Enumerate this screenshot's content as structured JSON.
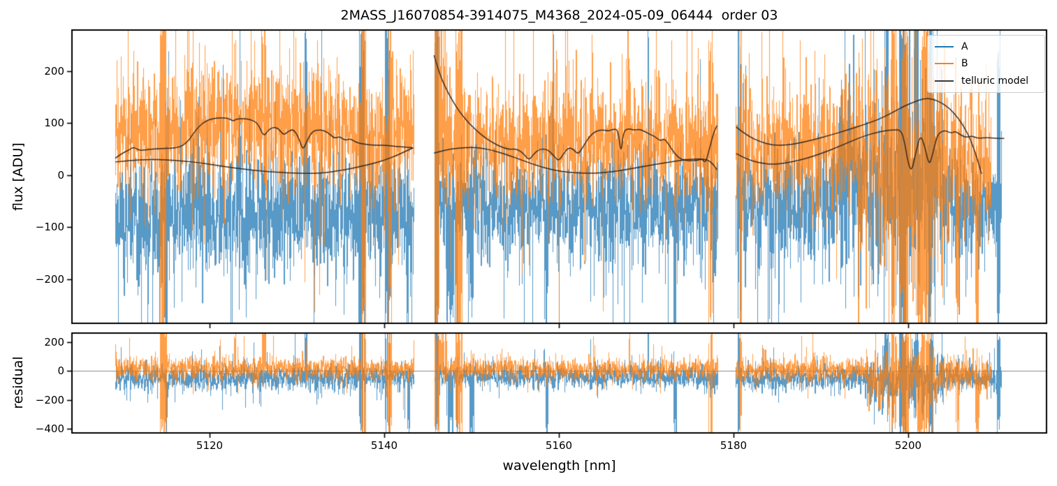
{
  "chart_data": {
    "type": "line",
    "title": "2MASS_J16070854-3914075_M4368_2024-05-09_06444  order 03",
    "xlabel": "wavelength [nm]",
    "xlim": [
      5104.2,
      5215.8
    ],
    "xticks": {
      "values": [
        5120,
        5140,
        5160,
        5180,
        5200
      ],
      "labels": [
        "5120",
        "5140",
        "5160",
        "5180",
        "5200"
      ]
    },
    "grid": false,
    "legend_position": "upper right",
    "legend": [
      {
        "label": "A",
        "color": "#1f77b4"
      },
      {
        "label": "B",
        "color": "#ff7f0e"
      },
      {
        "label": "telluric model",
        "color": "#3a3a3a"
      }
    ],
    "panels": [
      {
        "name": "flux",
        "ylabel": "flux [ADU]",
        "ylim": [
          -285,
          279
        ],
        "yticks": {
          "values": [
            -200,
            -100,
            0,
            100,
            200
          ],
          "labels": [
            "−200",
            "−100",
            "0",
            "100",
            "200"
          ]
        }
      },
      {
        "name": "residual",
        "ylabel": "residual",
        "ylim": [
          -429,
          260
        ],
        "yticks": {
          "values": [
            -400,
            -200,
            0,
            200
          ],
          "labels": [
            "−400",
            "−200",
            "0",
            "200"
          ]
        },
        "zero_line_color": "#8a8a8a"
      }
    ],
    "series_style": {
      "A": {
        "color": "#1f77b4",
        "alpha": 0.75
      },
      "B": {
        "color": "#ff7f0e",
        "alpha": 0.75
      },
      "telluric": {
        "color": "#262220",
        "alpha": 0.92
      }
    },
    "noise_seed": 1337,
    "segments": [
      {
        "x_range": [
          5109.2,
          5143.4
        ],
        "flux": {
          "A": {
            "center": -75,
            "sigma": 60
          },
          "B": {
            "center": 78,
            "sigma": 60
          }
        },
        "residual": {
          "A": {
            "center": -52,
            "sigma": 44
          },
          "B": {
            "center": 16,
            "sigma": 40
          }
        }
      },
      {
        "x_range": [
          5145.7,
          5178.2
        ],
        "flux": {
          "A": {
            "center": -62,
            "sigma": 55
          },
          "B": {
            "center": 60,
            "sigma": 57
          }
        },
        "residual": {
          "A": {
            "center": -45,
            "sigma": 40
          },
          "B": {
            "center": 12,
            "sigma": 38
          }
        }
      },
      {
        "x_range": [
          5180.2,
          5211.0
        ],
        "x_end": {
          "A": 5210.7,
          "B": 5209.5
        },
        "flux": {
          "A": {
            "center": -58,
            "sigma": 60
          },
          "B": {
            "center": 55,
            "sigma": 62
          }
        },
        "residual": {
          "A": {
            "center": -50,
            "sigma": 45
          },
          "B": {
            "center": 10,
            "sigma": 44
          }
        }
      }
    ],
    "boosts": [
      {
        "panel": "flux",
        "series": "B",
        "x0": 5117,
        "x1": 5133,
        "sigma_mult": 1.0,
        "center_shift": 15
      },
      {
        "panel": "flux",
        "series": "A",
        "x0": 5192,
        "x1": 5204,
        "sigma_mult": 1.7,
        "center_shift": 45
      },
      {
        "panel": "flux",
        "series": "B",
        "x0": 5194,
        "x1": 5204.5,
        "sigma_mult": 1.7,
        "center_shift": -35
      },
      {
        "panel": "flux",
        "series": "B",
        "x0": 5204.5,
        "x1": 5210,
        "sigma_mult": 1.25,
        "center_shift": -25
      },
      {
        "panel": "residual",
        "series": "A",
        "x0": 5195,
        "x1": 5204,
        "sigma_mult": 2.1,
        "center_shift": -35
      },
      {
        "panel": "residual",
        "series": "B",
        "x0": 5195,
        "x1": 5204,
        "sigma_mult": 2.3,
        "center_shift": -55
      },
      {
        "panel": "residual",
        "series": "B",
        "x0": 5204,
        "x1": 5209.5,
        "sigma_mult": 1.5,
        "center_shift": -35
      }
    ],
    "spikes": [
      {
        "x": 5114.7,
        "w": 0.8,
        "series": "B",
        "dir": "both"
      },
      {
        "x": 5115.0,
        "w": 0.3,
        "series": "A",
        "dir": "down"
      },
      {
        "x": 5122.9,
        "w": 0.2,
        "series": "B",
        "dir": "up"
      },
      {
        "x": 5126.2,
        "w": 0.5,
        "series": "B",
        "dir": "up"
      },
      {
        "x": 5131.0,
        "w": 0.25,
        "series": "A",
        "dir": "up"
      },
      {
        "x": 5137.4,
        "w": 0.7,
        "series": "A",
        "dir": "both"
      },
      {
        "x": 5137.6,
        "w": 0.6,
        "series": "B",
        "dir": "both"
      },
      {
        "x": 5140.3,
        "w": 0.6,
        "series": "A",
        "dir": "both"
      },
      {
        "x": 5140.6,
        "w": 0.5,
        "series": "B",
        "dir": "both"
      },
      {
        "x": 5142.8,
        "w": 0.4,
        "series": "A",
        "dir": "down"
      },
      {
        "x": 5145.9,
        "w": 0.6,
        "series": "A",
        "dir": "both"
      },
      {
        "x": 5146.0,
        "w": 0.5,
        "series": "B",
        "dir": "both"
      },
      {
        "x": 5146.7,
        "w": 0.9,
        "series": "B",
        "dir": "up"
      },
      {
        "x": 5147.7,
        "w": 1.3,
        "series": "A",
        "dir": "down"
      },
      {
        "x": 5148.5,
        "w": 0.8,
        "series": "B",
        "dir": "both"
      },
      {
        "x": 5150.0,
        "w": 0.5,
        "series": "A",
        "dir": "down"
      },
      {
        "x": 5158.6,
        "w": 0.25,
        "series": "A",
        "dir": "down"
      },
      {
        "x": 5168.0,
        "w": 0.25,
        "series": "B",
        "dir": "up"
      },
      {
        "x": 5170.2,
        "w": 0.2,
        "series": "A",
        "dir": "up"
      },
      {
        "x": 5173.3,
        "w": 0.4,
        "series": "A",
        "dir": "down"
      },
      {
        "x": 5177.3,
        "w": 0.5,
        "series": "B",
        "dir": "both"
      },
      {
        "x": 5180.6,
        "w": 0.4,
        "series": "A",
        "dir": "both"
      },
      {
        "x": 5180.8,
        "w": 0.3,
        "series": "B",
        "dir": "both"
      },
      {
        "x": 5197.5,
        "w": 0.5,
        "series": "A",
        "dir": "up"
      },
      {
        "x": 5198.3,
        "w": 0.6,
        "series": "B",
        "dir": "both"
      },
      {
        "x": 5199.3,
        "w": 0.8,
        "series": "A",
        "dir": "both"
      },
      {
        "x": 5199.6,
        "w": 0.8,
        "series": "B",
        "dir": "both"
      },
      {
        "x": 5200.9,
        "w": 0.6,
        "series": "A",
        "dir": "up"
      },
      {
        "x": 5201.2,
        "w": 0.7,
        "series": "B",
        "dir": "down"
      },
      {
        "x": 5201.9,
        "w": 0.9,
        "series": "B",
        "dir": "both"
      },
      {
        "x": 5202.6,
        "w": 0.5,
        "series": "A",
        "dir": "both"
      },
      {
        "x": 5205.6,
        "w": 0.4,
        "series": "B",
        "dir": "down"
      },
      {
        "x": 5207.9,
        "w": 0.5,
        "series": "B",
        "dir": "down"
      },
      {
        "x": 5210.3,
        "w": 0.4,
        "series": "A",
        "dir": "both"
      }
    ],
    "telluric_model": [
      [
        [
          5109.2,
          32
        ],
        [
          5110.0,
          42
        ],
        [
          5110.8,
          48
        ],
        [
          5111.3,
          54
        ],
        [
          5111.9,
          47
        ],
        [
          5112.6,
          48
        ],
        [
          5113.5,
          50
        ],
        [
          5114.5,
          51
        ],
        [
          5115.5,
          51
        ],
        [
          5116.5,
          53
        ],
        [
          5117.3,
          60
        ],
        [
          5118.0,
          76
        ],
        [
          5118.8,
          94
        ],
        [
          5119.6,
          104
        ],
        [
          5120.3,
          108
        ],
        [
          5121.2,
          110
        ],
        [
          5122.2,
          109
        ],
        [
          5122.7,
          103
        ],
        [
          5123.1,
          108
        ],
        [
          5124.2,
          108
        ],
        [
          5125.0,
          105
        ],
        [
          5125.6,
          97
        ],
        [
          5126.2,
          73
        ],
        [
          5126.7,
          86
        ],
        [
          5127.3,
          92
        ],
        [
          5127.9,
          89
        ],
        [
          5128.5,
          76
        ],
        [
          5129.0,
          84
        ],
        [
          5129.6,
          88
        ],
        [
          5130.2,
          72
        ],
        [
          5130.7,
          46
        ],
        [
          5131.2,
          68
        ],
        [
          5131.8,
          84
        ],
        [
          5132.5,
          87
        ],
        [
          5133.2,
          85
        ],
        [
          5133.8,
          78
        ],
        [
          5134.3,
          70
        ],
        [
          5134.9,
          74
        ],
        [
          5135.5,
          66
        ],
        [
          5136.1,
          70
        ],
        [
          5136.7,
          63
        ],
        [
          5137.4,
          60
        ],
        [
          5138.2,
          58
        ],
        [
          5139.2,
          57
        ],
        [
          5140.2,
          57
        ],
        [
          5141.2,
          55
        ],
        [
          5142.2,
          54
        ],
        [
          5143.3,
          52
        ]
      ],
      [
        [
          5109.2,
          25
        ],
        [
          5111,
          28
        ],
        [
          5113,
          30
        ],
        [
          5115,
          29
        ],
        [
          5117,
          27
        ],
        [
          5119,
          23
        ],
        [
          5121,
          18
        ],
        [
          5123,
          13
        ],
        [
          5125,
          9
        ],
        [
          5127,
          6
        ],
        [
          5129,
          4
        ],
        [
          5131,
          3
        ],
        [
          5132.5,
          3
        ],
        [
          5134,
          6
        ],
        [
          5135.5,
          10
        ],
        [
          5137,
          15
        ],
        [
          5138.5,
          21
        ],
        [
          5140,
          28
        ],
        [
          5141.5,
          38
        ],
        [
          5142.5,
          46
        ],
        [
          5143.3,
          52
        ]
      ],
      [
        [
          5145.7,
          230
        ],
        [
          5146.3,
          196
        ],
        [
          5147.0,
          168
        ],
        [
          5147.8,
          143
        ],
        [
          5148.6,
          122
        ],
        [
          5149.5,
          103
        ],
        [
          5150.5,
          86
        ],
        [
          5151.5,
          72
        ],
        [
          5152.5,
          61
        ],
        [
          5153.5,
          53
        ],
        [
          5154.3,
          49
        ],
        [
          5155.0,
          50
        ],
        [
          5155.6,
          46
        ],
        [
          5156.1,
          38
        ],
        [
          5156.6,
          28
        ],
        [
          5157.1,
          40
        ],
        [
          5157.7,
          49
        ],
        [
          5158.4,
          50
        ],
        [
          5159.0,
          45
        ],
        [
          5159.6,
          33
        ],
        [
          5160.0,
          27
        ],
        [
          5160.5,
          40
        ],
        [
          5161.1,
          53
        ],
        [
          5161.7,
          49
        ],
        [
          5162.2,
          39
        ],
        [
          5162.8,
          55
        ],
        [
          5163.5,
          74
        ],
        [
          5164.2,
          84
        ],
        [
          5165.0,
          87
        ],
        [
          5165.7,
          84
        ],
        [
          5166.2,
          88
        ],
        [
          5166.8,
          87
        ],
        [
          5167.1,
          38
        ],
        [
          5167.4,
          85
        ],
        [
          5168.0,
          89
        ],
        [
          5168.6,
          86
        ],
        [
          5169.2,
          88
        ],
        [
          5169.8,
          84
        ],
        [
          5170.4,
          78
        ],
        [
          5171.0,
          74
        ],
        [
          5171.6,
          65
        ],
        [
          5172.1,
          70
        ],
        [
          5172.6,
          58
        ],
        [
          5173.1,
          45
        ],
        [
          5173.7,
          33
        ],
        [
          5174.4,
          28
        ],
        [
          5175.2,
          27
        ],
        [
          5175.9,
          28
        ],
        [
          5176.4,
          31
        ],
        [
          5176.8,
          22
        ],
        [
          5177.2,
          48
        ],
        [
          5177.7,
          80
        ],
        [
          5178.1,
          95
        ]
      ],
      [
        [
          5145.7,
          42
        ],
        [
          5147,
          48
        ],
        [
          5148.5,
          52
        ],
        [
          5150,
          53
        ],
        [
          5151,
          52
        ],
        [
          5152.5,
          47
        ],
        [
          5154,
          39
        ],
        [
          5156,
          27
        ],
        [
          5158,
          15
        ],
        [
          5160,
          7
        ],
        [
          5162,
          3.5
        ],
        [
          5164,
          3
        ],
        [
          5166,
          6
        ],
        [
          5168,
          11
        ],
        [
          5170,
          17
        ],
        [
          5172,
          23
        ],
        [
          5174,
          28
        ],
        [
          5175.5,
          31
        ],
        [
          5177,
          30
        ],
        [
          5177.7,
          20
        ],
        [
          5178.1,
          10
        ]
      ],
      [
        [
          5180.3,
          41
        ],
        [
          5181.5,
          30
        ],
        [
          5183,
          23
        ],
        [
          5184.5,
          20
        ],
        [
          5186,
          23
        ],
        [
          5187.5,
          28
        ],
        [
          5189,
          35
        ],
        [
          5190.5,
          44
        ],
        [
          5192,
          54
        ],
        [
          5193.5,
          65
        ],
        [
          5195,
          75
        ],
        [
          5196.2,
          81
        ],
        [
          5197.3,
          85
        ],
        [
          5198.4,
          87
        ],
        [
          5199.2,
          86
        ],
        [
          5199.6,
          62
        ],
        [
          5200.0,
          22
        ],
        [
          5200.4,
          6
        ],
        [
          5200.9,
          45
        ],
        [
          5201.4,
          78
        ],
        [
          5201.9,
          55
        ],
        [
          5202.4,
          17
        ],
        [
          5202.8,
          40
        ],
        [
          5203.3,
          75
        ],
        [
          5203.8,
          84
        ],
        [
          5204.4,
          85
        ],
        [
          5204.9,
          80
        ],
        [
          5205.4,
          84
        ],
        [
          5206.0,
          77
        ],
        [
          5206.6,
          72
        ],
        [
          5207.3,
          75
        ],
        [
          5208.0,
          70
        ],
        [
          5209.0,
          72
        ],
        [
          5210.0,
          70
        ],
        [
          5211.0,
          70
        ]
      ],
      [
        [
          5180.3,
          92
        ],
        [
          5181.5,
          76
        ],
        [
          5183,
          64
        ],
        [
          5184.5,
          57
        ],
        [
          5186,
          57
        ],
        [
          5187.5,
          61
        ],
        [
          5189,
          67
        ],
        [
          5191,
          76
        ],
        [
          5193,
          86
        ],
        [
          5195,
          97
        ],
        [
          5196.5,
          106
        ],
        [
          5198,
          118
        ],
        [
          5199.5,
          132
        ],
        [
          5200.8,
          141
        ],
        [
          5201.8,
          147
        ],
        [
          5202.8,
          146
        ],
        [
          5203.8,
          139
        ],
        [
          5204.8,
          127
        ],
        [
          5205.8,
          108
        ],
        [
          5206.8,
          81
        ],
        [
          5207.5,
          52
        ],
        [
          5208.0,
          26
        ],
        [
          5208.4,
          2
        ]
      ]
    ]
  }
}
